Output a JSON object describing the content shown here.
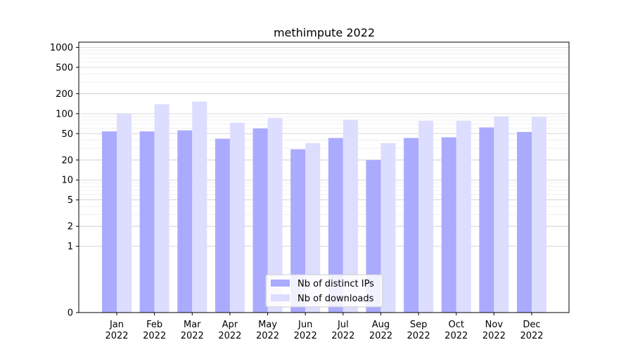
{
  "chart_data": {
    "type": "bar",
    "title": "methimpute 2022",
    "xlabel": "",
    "ylabel": "",
    "yscale": "symlog",
    "ylim": [
      0,
      1200
    ],
    "yticks": [
      0,
      1,
      2,
      5,
      10,
      20,
      50,
      100,
      200,
      500,
      1000
    ],
    "grid": true,
    "legend_position": "lower center",
    "categories": [
      "Jan\n2022",
      "Feb\n2022",
      "Mar\n2022",
      "Apr\n2022",
      "May\n2022",
      "Jun\n2022",
      "Jul\n2022",
      "Aug\n2022",
      "Sep\n2022",
      "Oct\n2022",
      "Nov\n2022",
      "Dec\n2022"
    ],
    "series": [
      {
        "name": "Nb of distinct IPs",
        "color": "#aaaaff",
        "values": [
          54,
          54,
          56,
          42,
          60,
          29,
          43,
          20,
          43,
          44,
          62,
          53
        ]
      },
      {
        "name": "Nb of downloads",
        "color": "#ddddff",
        "values": [
          100,
          139,
          152,
          73,
          86,
          36,
          81,
          36,
          78,
          78,
          91,
          89
        ]
      }
    ]
  }
}
